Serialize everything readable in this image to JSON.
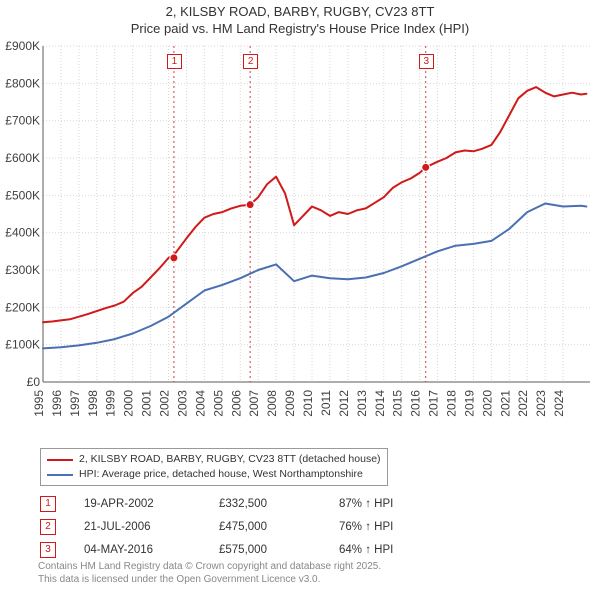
{
  "title_line1": "2, KILSBY ROAD, BARBY, RUGBY, CV23 8TT",
  "title_line2": "Price paid vs. HM Land Registry's House Price Index (HPI)",
  "chart": {
    "type": "line",
    "background_color": "#ffffff",
    "grid_color": "#d7d7d7",
    "grid_dash": "1,2",
    "axis_color": "#5b5b5b",
    "x_years": [
      1995,
      1996,
      1997,
      1998,
      1999,
      2000,
      2001,
      2002,
      2003,
      2004,
      2005,
      2006,
      2007,
      2008,
      2009,
      2010,
      2011,
      2012,
      2013,
      2014,
      2015,
      2016,
      2017,
      2018,
      2019,
      2020,
      2021,
      2022,
      2023,
      2024
    ],
    "x_domain": [
      1995,
      2025.5
    ],
    "y_ticks": [
      0,
      100,
      200,
      300,
      400,
      500,
      600,
      700,
      800,
      900
    ],
    "y_tick_labels": [
      "£0",
      "£100K",
      "£200K",
      "£300K",
      "£400K",
      "£500K",
      "£600K",
      "£700K",
      "£800K",
      "£900K"
    ],
    "y_domain": [
      0,
      900
    ],
    "series": [
      {
        "id": "subject",
        "label": "2, KILSBY ROAD, BARBY, RUGBY, CV23 8TT (detached house)",
        "color": "#d11919",
        "line_width": 2,
        "x": [
          1995,
          1995.5,
          1996,
          1996.5,
          1997,
          1997.5,
          1998,
          1998.5,
          1999,
          1999.5,
          2000,
          2000.5,
          2001,
          2001.5,
          2002,
          2002.3,
          2003,
          2003.5,
          2004,
          2004.5,
          2005,
          2005.5,
          2006,
          2006.55,
          2007,
          2007.5,
          2008,
          2008.5,
          2009,
          2009.5,
          2010,
          2010.5,
          2011,
          2011.5,
          2012,
          2012.5,
          2013,
          2013.5,
          2014,
          2014.5,
          2015,
          2015.5,
          2016,
          2016.34,
          2017,
          2017.5,
          2018,
          2018.5,
          2019,
          2019.5,
          2020,
          2020.5,
          2021,
          2021.5,
          2022,
          2022.5,
          2023,
          2023.5,
          2024,
          2024.5,
          2025,
          2025.3
        ],
        "y": [
          160,
          162,
          165,
          168,
          175,
          182,
          190,
          198,
          205,
          215,
          238,
          255,
          280,
          305,
          332.5,
          340,
          385,
          415,
          440,
          450,
          455,
          465,
          472,
          475,
          495,
          530,
          550,
          505,
          420,
          445,
          470,
          460,
          445,
          455,
          450,
          460,
          465,
          480,
          495,
          520,
          535,
          545,
          560,
          575,
          590,
          600,
          615,
          620,
          618,
          625,
          635,
          670,
          715,
          760,
          780,
          790,
          775,
          765,
          770,
          775,
          770,
          772
        ]
      },
      {
        "id": "hpi",
        "label": "HPI: Average price, detached house, West Northamptonshire",
        "color": "#4a6fb3",
        "line_width": 2,
        "x": [
          1995,
          1996,
          1997,
          1998,
          1999,
          2000,
          2001,
          2002,
          2003,
          2004,
          2005,
          2006,
          2007,
          2008,
          2009,
          2010,
          2011,
          2012,
          2013,
          2014,
          2015,
          2016,
          2017,
          2018,
          2019,
          2020,
          2021,
          2022,
          2023,
          2024,
          2025,
          2025.3
        ],
        "y": [
          90,
          93,
          98,
          105,
          115,
          130,
          150,
          175,
          210,
          245,
          260,
          278,
          300,
          315,
          270,
          285,
          278,
          275,
          280,
          292,
          310,
          330,
          350,
          365,
          370,
          378,
          410,
          455,
          478,
          470,
          472,
          470
        ]
      }
    ],
    "markers": [
      {
        "n": "1",
        "x": 2002.3,
        "y": 332.5,
        "color": "#d11919"
      },
      {
        "n": "2",
        "x": 2006.55,
        "y": 475,
        "color": "#d11919"
      },
      {
        "n": "3",
        "x": 2016.34,
        "y": 575,
        "color": "#d11919"
      }
    ],
    "marker_vline_color": "#d11919",
    "marker_vline_dash": "2,3"
  },
  "legend": {
    "border_color": "#999999"
  },
  "sales": [
    {
      "n": "1",
      "date": "19-APR-2002",
      "price": "£332,500",
      "pct": "87% ↑ HPI",
      "color": "#d11919"
    },
    {
      "n": "2",
      "date": "21-JUL-2006",
      "price": "£475,000",
      "pct": "76% ↑ HPI",
      "color": "#d11919"
    },
    {
      "n": "3",
      "date": "04-MAY-2016",
      "price": "£575,000",
      "pct": "64% ↑ HPI",
      "color": "#d11919"
    }
  ],
  "footnote_line1": "Contains HM Land Registry data © Crown copyright and database right 2025.",
  "footnote_line2": "This data is licensed under the Open Government Licence v3.0."
}
